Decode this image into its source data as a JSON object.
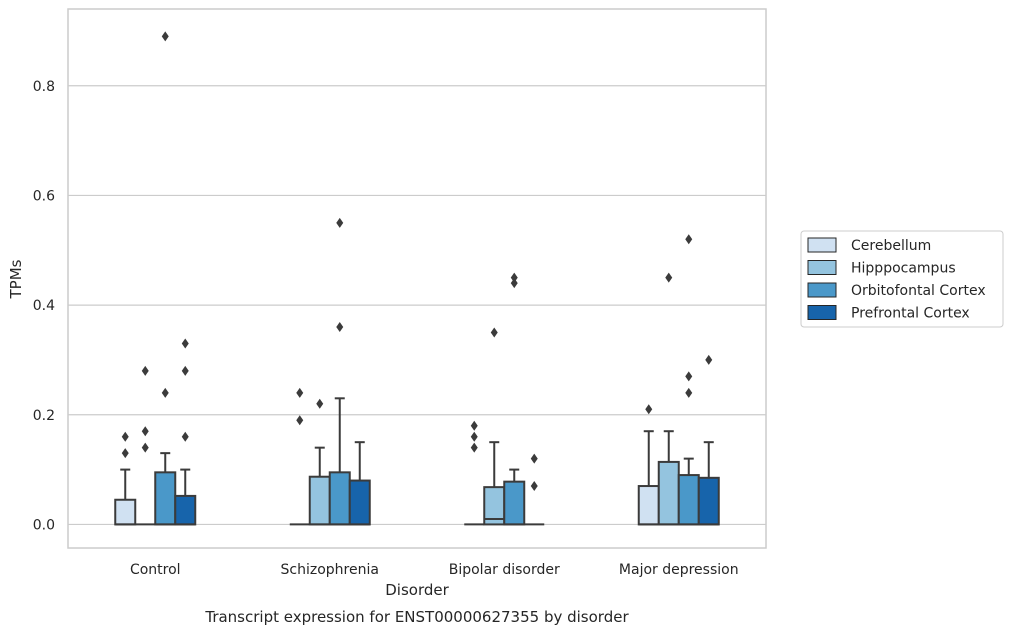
{
  "chart_data": {
    "type": "box",
    "title": "Transcript expression for ENST00000627355 by disorder",
    "xlabel": "Disorder",
    "ylabel": "TPMs",
    "ylim": [
      -0.043,
      0.94
    ],
    "yticks": [
      0.0,
      0.2,
      0.4,
      0.6,
      0.8
    ],
    "ytick_labels": [
      "0.0",
      "0.2",
      "0.4",
      "0.6",
      "0.8"
    ],
    "grid": "horizontal",
    "legend_position": "right",
    "categories": [
      "Control",
      "Schizophrenia",
      "Bipolar disorder",
      "Major depression"
    ],
    "series": [
      {
        "name": "Cerebellum",
        "color": "#d0e1f2",
        "boxes": [
          {
            "q1": 0.0,
            "median": 0.0,
            "q3": 0.045,
            "whisker_low": 0.0,
            "whisker_high": 0.1,
            "outliers": [
              0.13,
              0.16
            ]
          },
          {
            "q1": 0.0,
            "median": 0.0,
            "q3": 0.0,
            "whisker_low": 0.0,
            "whisker_high": 0.0,
            "outliers": [
              0.19,
              0.24
            ]
          },
          {
            "q1": 0.0,
            "median": 0.0,
            "q3": 0.0,
            "whisker_low": 0.0,
            "whisker_high": 0.0,
            "outliers": [
              0.14,
              0.16,
              0.18
            ]
          },
          {
            "q1": 0.0,
            "median": 0.0,
            "q3": 0.07,
            "whisker_low": 0.0,
            "whisker_high": 0.17,
            "outliers": [
              0.21
            ]
          }
        ]
      },
      {
        "name": "Hipppocampus",
        "color": "#94c4df",
        "boxes": [
          {
            "q1": 0.0,
            "median": 0.0,
            "q3": 0.0,
            "whisker_low": 0.0,
            "whisker_high": 0.0,
            "outliers": [
              0.14,
              0.17,
              0.28
            ]
          },
          {
            "q1": 0.0,
            "median": 0.0,
            "q3": 0.087,
            "whisker_low": 0.0,
            "whisker_high": 0.14,
            "outliers": [
              0.22
            ]
          },
          {
            "q1": 0.0,
            "median": 0.01,
            "q3": 0.068,
            "whisker_low": 0.0,
            "whisker_high": 0.15,
            "outliers": [
              0.35
            ]
          },
          {
            "q1": 0.0,
            "median": 0.0,
            "q3": 0.114,
            "whisker_low": 0.0,
            "whisker_high": 0.17,
            "outliers": [
              0.45
            ]
          }
        ]
      },
      {
        "name": "Orbitofontal Cortex",
        "color": "#4a98c9",
        "boxes": [
          {
            "q1": 0.0,
            "median": 0.0,
            "q3": 0.095,
            "whisker_low": 0.0,
            "whisker_high": 0.13,
            "outliers": [
              0.24,
              0.89
            ]
          },
          {
            "q1": 0.0,
            "median": 0.0,
            "q3": 0.095,
            "whisker_low": 0.0,
            "whisker_high": 0.23,
            "outliers": [
              0.36,
              0.55
            ]
          },
          {
            "q1": 0.0,
            "median": 0.0,
            "q3": 0.078,
            "whisker_low": 0.0,
            "whisker_high": 0.1,
            "outliers": [
              0.44,
              0.45
            ]
          },
          {
            "q1": 0.0,
            "median": 0.0,
            "q3": 0.09,
            "whisker_low": 0.0,
            "whisker_high": 0.12,
            "outliers": [
              0.24,
              0.27,
              0.52
            ]
          }
        ]
      },
      {
        "name": "Prefrontal Cortex",
        "color": "#1764ab",
        "boxes": [
          {
            "q1": 0.0,
            "median": 0.0,
            "q3": 0.052,
            "whisker_low": 0.0,
            "whisker_high": 0.1,
            "outliers": [
              0.16,
              0.28,
              0.33
            ]
          },
          {
            "q1": 0.0,
            "median": 0.0,
            "q3": 0.08,
            "whisker_low": 0.0,
            "whisker_high": 0.15,
            "outliers": []
          },
          {
            "q1": 0.0,
            "median": 0.0,
            "q3": 0.0,
            "whisker_low": 0.0,
            "whisker_high": 0.0,
            "outliers": [
              0.07,
              0.12
            ]
          },
          {
            "q1": 0.0,
            "median": 0.0,
            "q3": 0.085,
            "whisker_low": 0.0,
            "whisker_high": 0.15,
            "outliers": [
              0.3
            ]
          }
        ]
      }
    ]
  }
}
